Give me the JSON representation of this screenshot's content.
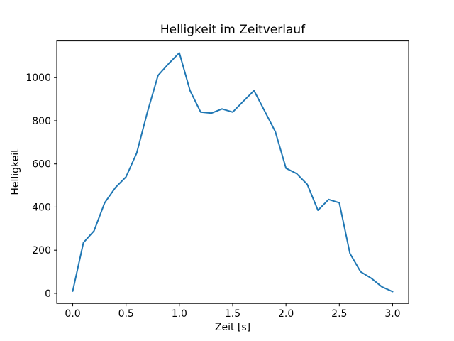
{
  "figure": {
    "background_color": "#ffffff",
    "spine_color": "#000000"
  },
  "chart_data": {
    "type": "line",
    "title": "Helligkeit im Zeitverlauf",
    "xlabel": "Zeit [s]",
    "ylabel": "Helligkeit",
    "line_color": "#1f77b4",
    "grid": false,
    "legend": false,
    "xlim": [
      -0.15,
      3.15
    ],
    "ylim": [
      -47,
      1170
    ],
    "xticks": {
      "values": [
        0.0,
        0.5,
        1.0,
        1.5,
        2.0,
        2.5,
        3.0
      ],
      "labels": [
        "0.0",
        "0.5",
        "1.0",
        "1.5",
        "2.0",
        "2.5",
        "3.0"
      ]
    },
    "yticks": {
      "values": [
        0,
        200,
        400,
        600,
        800,
        1000
      ],
      "labels": [
        "0",
        "200",
        "400",
        "600",
        "800",
        "1000"
      ]
    },
    "x": [
      0.0,
      0.1,
      0.2,
      0.3,
      0.4,
      0.5,
      0.6,
      0.7,
      0.8,
      0.9,
      1.0,
      1.1,
      1.2,
      1.3,
      1.4,
      1.5,
      1.6,
      1.7,
      1.8,
      1.9,
      2.0,
      2.1,
      2.2,
      2.3,
      2.4,
      2.5,
      2.6,
      2.7,
      2.8,
      2.9,
      3.0
    ],
    "values": [
      10,
      235,
      290,
      420,
      490,
      540,
      650,
      840,
      1010,
      1065,
      1115,
      940,
      840,
      835,
      855,
      840,
      890,
      940,
      845,
      750,
      580,
      555,
      505,
      385,
      435,
      420,
      185,
      100,
      70,
      30,
      8
    ]
  }
}
